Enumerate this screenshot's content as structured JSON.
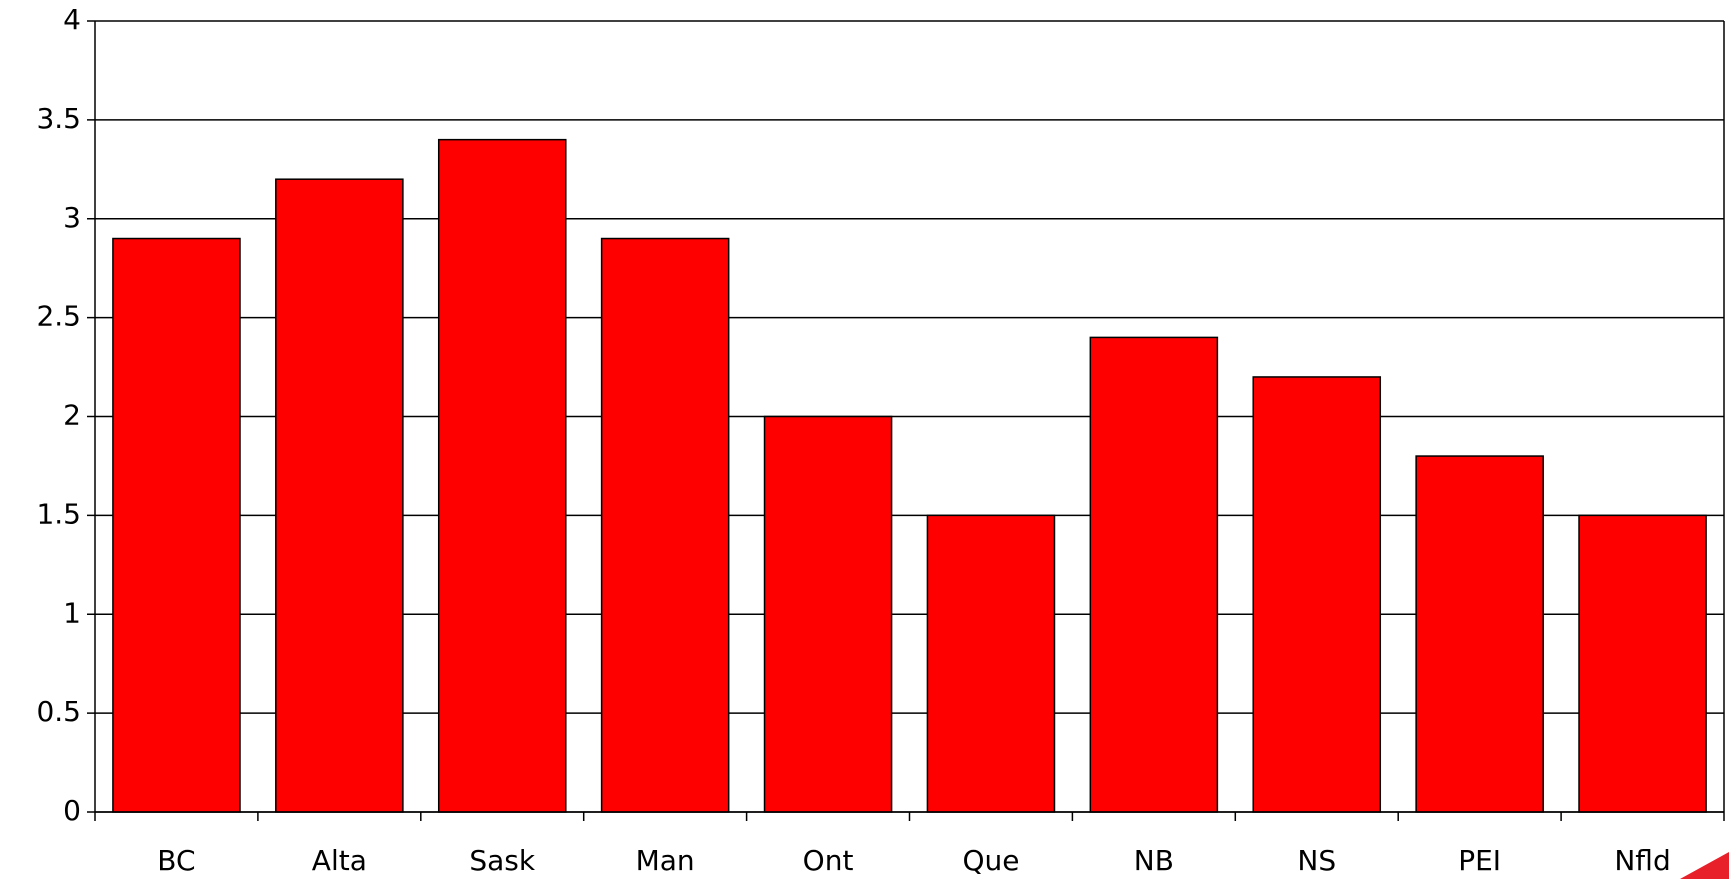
{
  "chart_data": {
    "type": "bar",
    "categories": [
      "BC",
      "Alta",
      "Sask",
      "Man",
      "Ont",
      "Que",
      "NB",
      "NS",
      "PEI",
      "Nfld"
    ],
    "values": [
      2.9,
      3.2,
      3.4,
      2.9,
      2.0,
      1.5,
      2.4,
      2.2,
      1.8,
      1.5
    ],
    "color": "#ff0000",
    "ylim": [
      0,
      4
    ],
    "yticks": [
      0,
      0.5,
      1,
      1.5,
      2,
      2.5,
      3,
      3.5,
      4
    ],
    "grid": true
  }
}
